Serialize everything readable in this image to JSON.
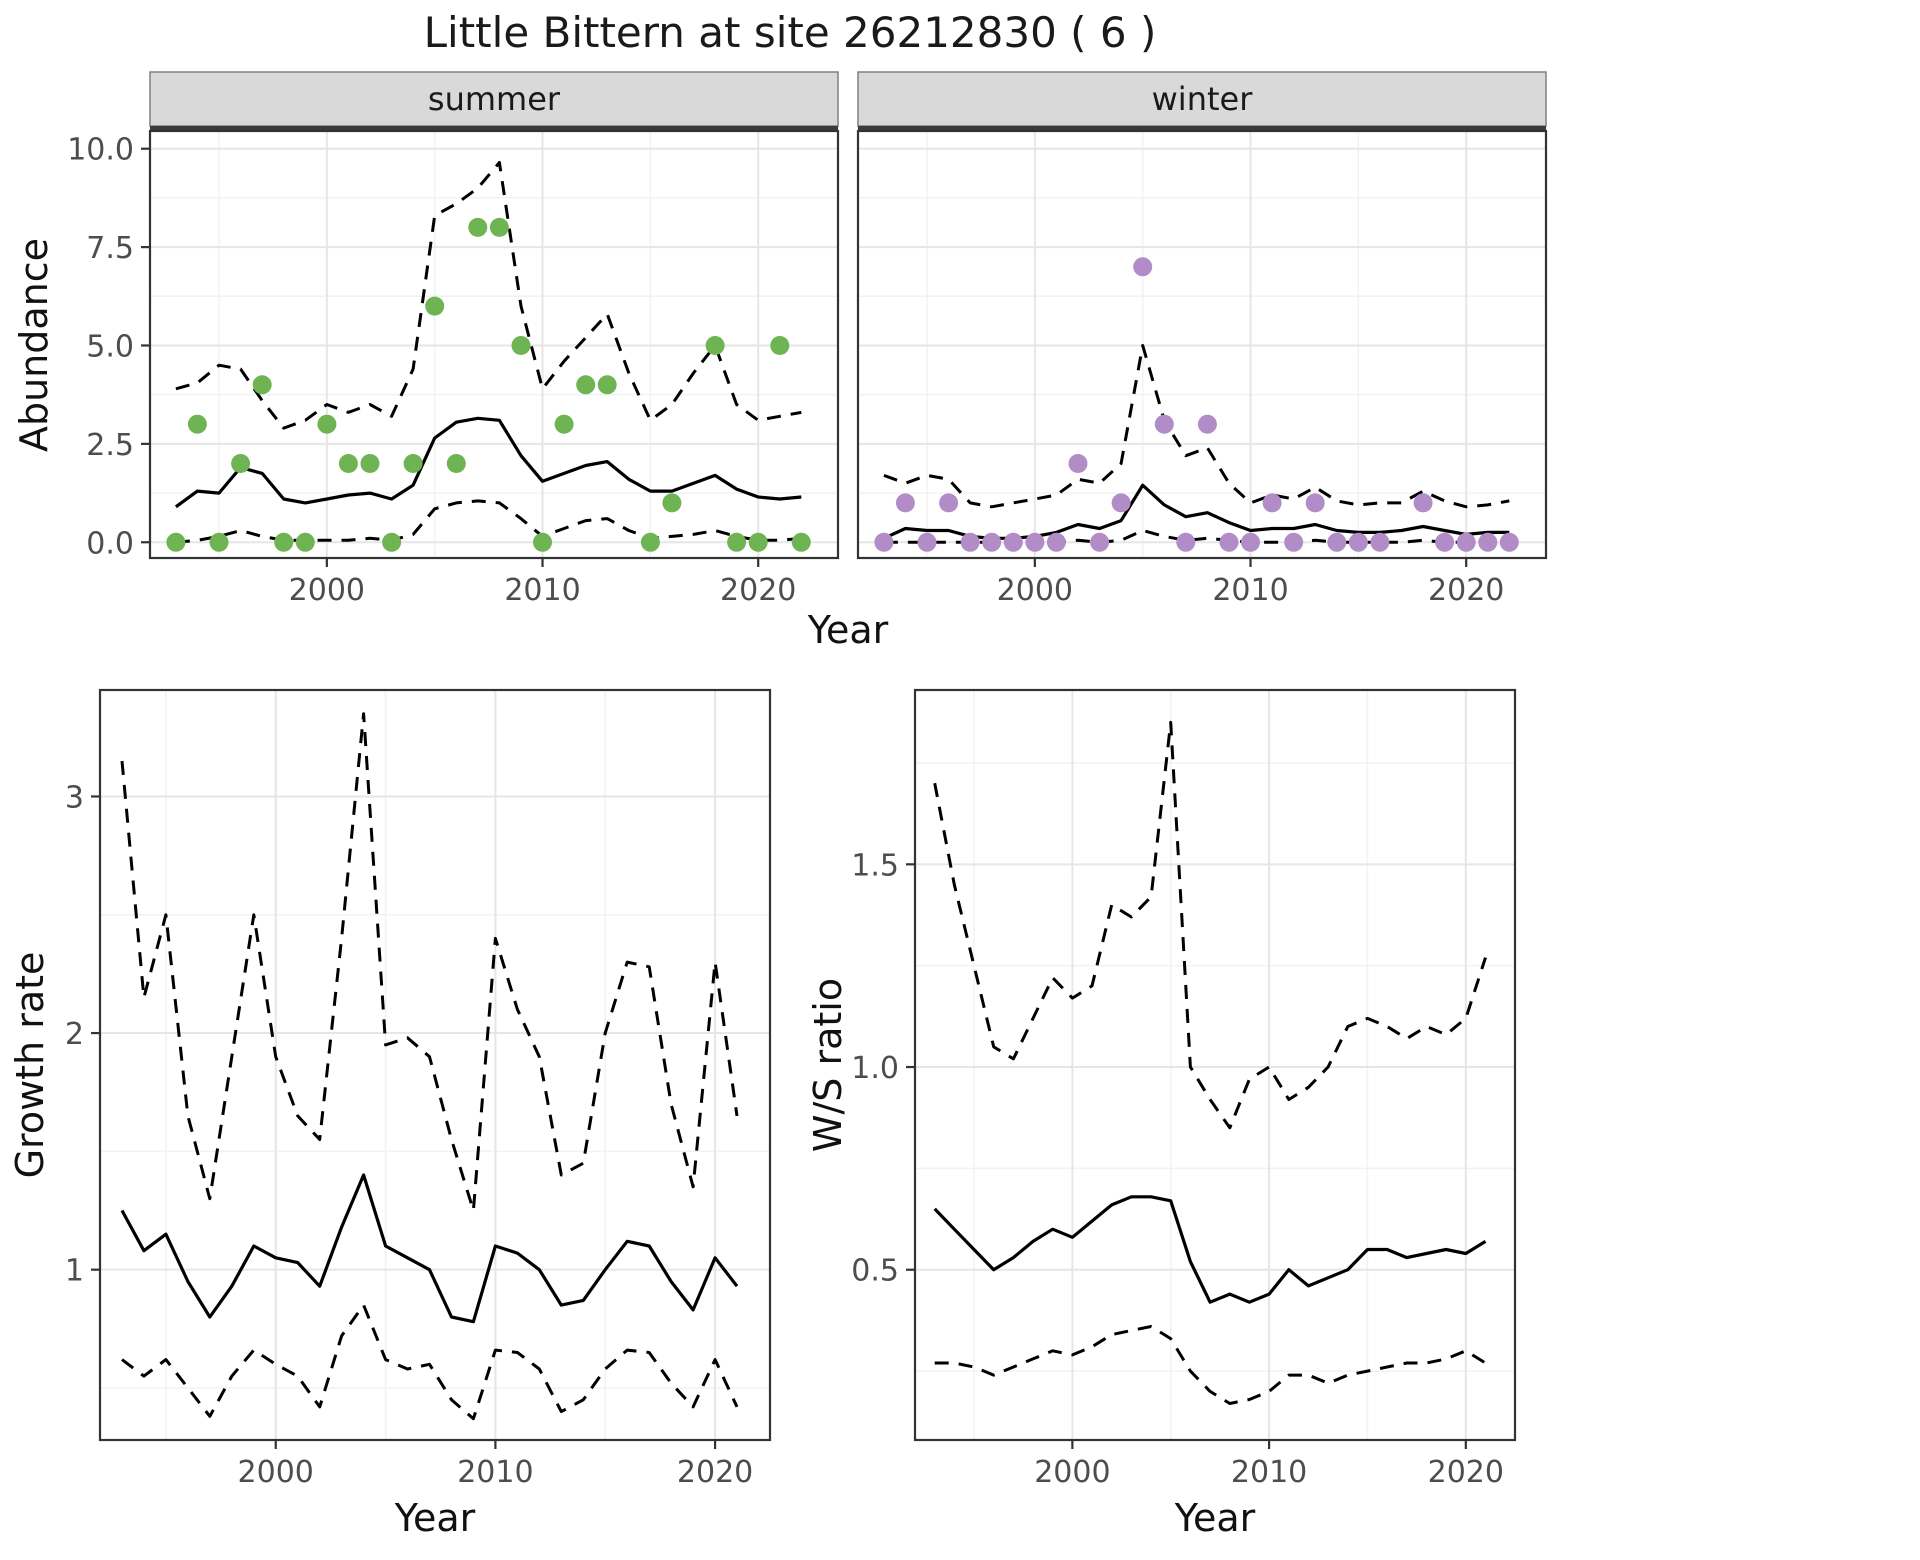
{
  "title": "Little Bittern at site 26212830 ( 6 )",
  "colors": {
    "summer_point": "#6FB453",
    "winter_point": "#B18CC6",
    "line": "#000000",
    "grid_major": "#E6E6E6",
    "grid_minor": "#F2F2F2",
    "panel_border": "#333333",
    "strip_bg": "#D9D9D9",
    "strip_edge": "#3A3A3A",
    "tick_text": "#4D4D4D",
    "background": "#FFFFFF"
  },
  "chart_data": [
    {
      "id": "abundance_summer",
      "type": "line+scatter",
      "facet": "summer",
      "xlabel": "Year",
      "ylabel": "Abundance",
      "xlim": [
        1991.8,
        2023.7
      ],
      "ylim": [
        -0.4,
        10.45
      ],
      "xticks": [
        2000,
        2010,
        2020
      ],
      "xtick_labels": [
        "2000",
        "2010",
        "2020"
      ],
      "yticks": [
        0,
        2.5,
        5,
        7.5,
        10
      ],
      "ytick_labels": [
        "0.0",
        "2.5",
        "5.0",
        "7.5",
        "10.0"
      ],
      "x_minor": [
        1995,
        2005,
        2015
      ],
      "y_minor": [
        1.25,
        3.75,
        6.25,
        8.75
      ],
      "years": [
        1993,
        1994,
        1995,
        1996,
        1997,
        1998,
        1999,
        2000,
        2001,
        2002,
        2003,
        2004,
        2005,
        2006,
        2007,
        2008,
        2009,
        2010,
        2011,
        2012,
        2013,
        2014,
        2015,
        2016,
        2017,
        2018,
        2019,
        2020,
        2021,
        2022
      ],
      "series": [
        {
          "name": "mean",
          "style": "solid",
          "values": [
            0.9,
            1.3,
            1.25,
            1.9,
            1.75,
            1.1,
            1.0,
            1.1,
            1.2,
            1.25,
            1.1,
            1.45,
            2.65,
            3.05,
            3.15,
            3.1,
            2.2,
            1.55,
            1.75,
            1.95,
            2.05,
            1.6,
            1.3,
            1.3,
            1.5,
            1.7,
            1.35,
            1.15,
            1.1,
            1.15
          ]
        },
        {
          "name": "upper_95ci",
          "style": "dashed",
          "values": [
            3.9,
            4.05,
            4.5,
            4.4,
            3.6,
            2.9,
            3.1,
            3.5,
            3.3,
            3.5,
            3.2,
            4.4,
            8.3,
            8.6,
            9.0,
            9.65,
            6.0,
            3.9,
            4.6,
            5.2,
            5.8,
            4.3,
            3.1,
            3.5,
            4.3,
            5.0,
            3.5,
            3.1,
            3.2,
            3.3
          ]
        },
        {
          "name": "lower_95ci",
          "style": "dashed",
          "values": [
            0.0,
            0.05,
            0.15,
            0.3,
            0.15,
            0.05,
            0.05,
            0.05,
            0.05,
            0.1,
            0.05,
            0.2,
            0.85,
            1.0,
            1.05,
            1.0,
            0.6,
            0.15,
            0.35,
            0.55,
            0.6,
            0.3,
            0.1,
            0.15,
            0.2,
            0.3,
            0.15,
            0.05,
            0.05,
            0.1
          ]
        }
      ],
      "points": {
        "name": "observed_counts",
        "color": "#6FB453",
        "values": [
          0,
          3,
          0,
          2,
          4,
          0,
          0,
          3,
          2,
          2,
          0,
          2,
          6,
          2,
          8,
          8,
          5,
          0,
          3,
          4,
          4,
          null,
          0,
          1,
          null,
          5,
          0,
          0,
          5,
          0
        ]
      }
    },
    {
      "id": "abundance_winter",
      "type": "line+scatter",
      "facet": "winter",
      "xlabel": "Year",
      "ylabel": "Abundance",
      "xlim": [
        1991.8,
        2023.7
      ],
      "ylim": [
        -0.4,
        10.45
      ],
      "xticks": [
        2000,
        2010,
        2020
      ],
      "xtick_labels": [
        "2000",
        "2010",
        "2020"
      ],
      "yticks": [
        0,
        2.5,
        5,
        7.5,
        10
      ],
      "ytick_labels": [
        "0.0",
        "2.5",
        "5.0",
        "7.5",
        "10.0"
      ],
      "x_minor": [
        1995,
        2005,
        2015
      ],
      "y_minor": [
        1.25,
        3.75,
        6.25,
        8.75
      ],
      "years": [
        1993,
        1994,
        1995,
        1996,
        1997,
        1998,
        1999,
        2000,
        2001,
        2002,
        2003,
        2004,
        2005,
        2006,
        2007,
        2008,
        2009,
        2010,
        2011,
        2012,
        2013,
        2014,
        2015,
        2016,
        2017,
        2018,
        2019,
        2020,
        2021,
        2022
      ],
      "series": [
        {
          "name": "mean",
          "style": "solid",
          "values": [
            0.1,
            0.35,
            0.3,
            0.3,
            0.15,
            0.1,
            0.1,
            0.15,
            0.25,
            0.45,
            0.35,
            0.55,
            1.45,
            0.95,
            0.65,
            0.75,
            0.5,
            0.3,
            0.35,
            0.35,
            0.45,
            0.3,
            0.25,
            0.25,
            0.3,
            0.4,
            0.3,
            0.2,
            0.25,
            0.25
          ]
        },
        {
          "name": "upper_95ci",
          "style": "dashed",
          "values": [
            1.7,
            1.5,
            1.7,
            1.6,
            1.0,
            0.9,
            1.0,
            1.1,
            1.2,
            1.6,
            1.5,
            2.0,
            5.0,
            3.1,
            2.2,
            2.4,
            1.5,
            1.0,
            1.2,
            1.1,
            1.4,
            1.05,
            0.95,
            1.0,
            1.0,
            1.3,
            1.05,
            0.9,
            0.95,
            1.05
          ]
        },
        {
          "name": "lower_95ci",
          "style": "dashed",
          "values": [
            0,
            0,
            0,
            0,
            0,
            0,
            0,
            0,
            0,
            0.05,
            0,
            0.05,
            0.3,
            0.15,
            0.05,
            0.1,
            0.05,
            0,
            0,
            0,
            0.05,
            0,
            0,
            0,
            0,
            0.05,
            0,
            0,
            0,
            0
          ]
        }
      ],
      "points": {
        "name": "observed_counts",
        "color": "#B18CC6",
        "values": [
          0,
          1,
          0,
          1,
          0,
          0,
          0,
          0,
          0,
          2,
          0,
          1,
          7,
          3,
          0,
          3,
          0,
          0,
          1,
          0,
          1,
          0,
          0,
          0,
          null,
          1,
          0,
          0,
          0,
          0
        ]
      }
    },
    {
      "id": "growth_rate",
      "type": "line",
      "xlabel": "Year",
      "ylabel": "Growth rate",
      "xlim": [
        1992,
        2022.5
      ],
      "ylim": [
        0.28,
        3.45
      ],
      "xticks": [
        2000,
        2010,
        2020
      ],
      "xtick_labels": [
        "2000",
        "2010",
        "2020"
      ],
      "yticks": [
        1,
        2,
        3
      ],
      "ytick_labels": [
        "1",
        "2",
        "3"
      ],
      "x_minor": [
        1995,
        2005,
        2015
      ],
      "y_minor": [
        0.5,
        1.5,
        2.5
      ],
      "years": [
        1993,
        1994,
        1995,
        1996,
        1997,
        1998,
        1999,
        2000,
        2001,
        2002,
        2003,
        2004,
        2005,
        2006,
        2007,
        2008,
        2009,
        2010,
        2011,
        2012,
        2013,
        2014,
        2015,
        2016,
        2017,
        2018,
        2019,
        2020,
        2021
      ],
      "series": [
        {
          "name": "mean",
          "style": "solid",
          "values": [
            1.25,
            1.08,
            1.15,
            0.95,
            0.8,
            0.93,
            1.1,
            1.05,
            1.03,
            0.93,
            1.18,
            1.4,
            1.1,
            1.05,
            1.0,
            0.8,
            0.78,
            1.1,
            1.07,
            1.0,
            0.85,
            0.87,
            1.0,
            1.12,
            1.1,
            0.95,
            0.83,
            1.05,
            0.93
          ]
        },
        {
          "name": "upper_95ci",
          "style": "dashed",
          "values": [
            3.15,
            2.15,
            2.5,
            1.65,
            1.3,
            1.9,
            2.5,
            1.9,
            1.65,
            1.55,
            2.4,
            3.35,
            1.95,
            1.98,
            1.9,
            1.55,
            1.25,
            2.4,
            2.1,
            1.9,
            1.4,
            1.45,
            2.0,
            2.3,
            2.28,
            1.7,
            1.35,
            2.3,
            1.65
          ]
        },
        {
          "name": "lower_95ci",
          "style": "dashed",
          "values": [
            0.62,
            0.55,
            0.62,
            0.5,
            0.38,
            0.55,
            0.66,
            0.6,
            0.55,
            0.42,
            0.72,
            0.85,
            0.62,
            0.58,
            0.6,
            0.45,
            0.37,
            0.66,
            0.65,
            0.58,
            0.4,
            0.45,
            0.58,
            0.66,
            0.65,
            0.52,
            0.42,
            0.62,
            0.42
          ]
        }
      ]
    },
    {
      "id": "ws_ratio",
      "type": "line",
      "xlabel": "Year",
      "ylabel": "W/S ratio",
      "xlim": [
        1992,
        2022.5
      ],
      "ylim": [
        0.08,
        1.93
      ],
      "xticks": [
        2000,
        2010,
        2020
      ],
      "xtick_labels": [
        "2000",
        "2010",
        "2020"
      ],
      "yticks": [
        0.5,
        1.0,
        1.5
      ],
      "ytick_labels": [
        "0.5",
        "1.0",
        "1.5"
      ],
      "x_minor": [
        1995,
        2005,
        2015
      ],
      "y_minor": [
        0.25,
        0.75,
        1.25,
        1.75
      ],
      "years": [
        1993,
        1994,
        1995,
        1996,
        1997,
        1998,
        1999,
        2000,
        2001,
        2002,
        2003,
        2004,
        2005,
        2006,
        2007,
        2008,
        2009,
        2010,
        2011,
        2012,
        2013,
        2014,
        2015,
        2016,
        2017,
        2018,
        2019,
        2020,
        2021
      ],
      "series": [
        {
          "name": "mean",
          "style": "solid",
          "values": [
            0.65,
            0.6,
            0.55,
            0.5,
            0.53,
            0.57,
            0.6,
            0.58,
            0.62,
            0.66,
            0.68,
            0.68,
            0.67,
            0.52,
            0.42,
            0.44,
            0.42,
            0.44,
            0.5,
            0.46,
            0.48,
            0.5,
            0.55,
            0.55,
            0.53,
            0.54,
            0.55,
            0.54,
            0.57
          ]
        },
        {
          "name": "upper_95ci",
          "style": "dashed",
          "values": [
            1.7,
            1.45,
            1.25,
            1.05,
            1.02,
            1.12,
            1.22,
            1.17,
            1.2,
            1.4,
            1.37,
            1.42,
            1.85,
            1.0,
            0.92,
            0.85,
            0.97,
            1.0,
            0.92,
            0.95,
            1.0,
            1.1,
            1.12,
            1.1,
            1.07,
            1.1,
            1.08,
            1.12,
            1.27
          ]
        },
        {
          "name": "lower_95ci",
          "style": "dashed",
          "values": [
            0.27,
            0.27,
            0.26,
            0.24,
            0.26,
            0.28,
            0.3,
            0.29,
            0.31,
            0.34,
            0.35,
            0.36,
            0.33,
            0.25,
            0.2,
            0.17,
            0.18,
            0.2,
            0.24,
            0.24,
            0.22,
            0.24,
            0.25,
            0.26,
            0.27,
            0.27,
            0.28,
            0.3,
            0.27
          ]
        }
      ]
    }
  ]
}
